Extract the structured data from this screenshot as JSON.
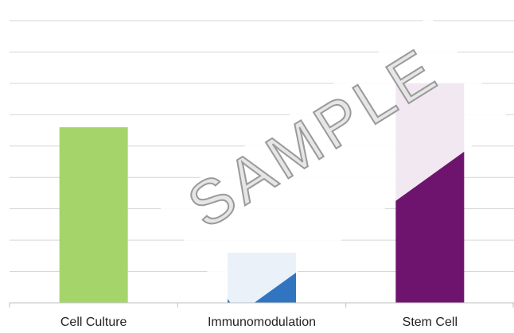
{
  "chart_data": {
    "type": "bar",
    "title": "",
    "xlabel": "",
    "ylabel": "",
    "categories": [
      "Cell Culture",
      "Immunomodulation",
      "Stem Cell"
    ],
    "values": [
      5.6,
      1.6,
      7.0
    ],
    "bar_colors": [
      "#a5d56a",
      "#3175c0",
      "#6e146e"
    ],
    "ylim": [
      0,
      9
    ],
    "gridlines": true,
    "legend": "none"
  },
  "watermark": {
    "text": "SAMPLE"
  }
}
